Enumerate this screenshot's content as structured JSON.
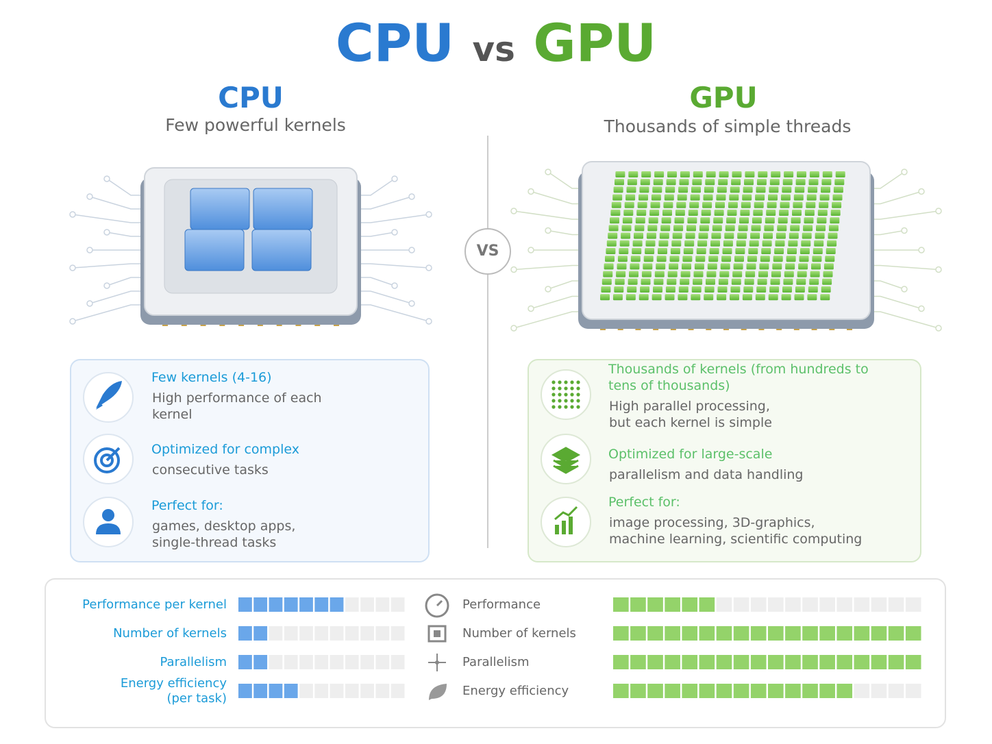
{
  "title": {
    "left": "CPU",
    "mid": "vs",
    "right": "GPU"
  },
  "vs_badge": "VS",
  "cpu": {
    "heading": "CPU",
    "subtitle": "Few powerful kernels",
    "features": [
      {
        "title": [
          "Few kernels (4-16)"
        ],
        "text": [
          "High performance of each",
          "kernel"
        ]
      },
      {
        "title": [
          "Optimized for complex"
        ],
        "text": [
          "consecutive tasks"
        ]
      },
      {
        "title": [
          "Perfect for:"
        ],
        "text": [
          "games, desktop apps,",
          "single-thread tasks"
        ]
      }
    ]
  },
  "gpu": {
    "heading": "GPU",
    "subtitle": "Thousands of simple threads",
    "features": [
      {
        "title": [
          "Thousands of kernels (from hundreds to",
          "tens of thousands)"
        ],
        "text": [
          "High parallel processing,",
          "but each kernel is simple"
        ]
      },
      {
        "title": [
          "Optimized for large-scale"
        ],
        "text": [
          "parallelism and data handling"
        ]
      },
      {
        "title": [
          "Perfect for:"
        ],
        "text": [
          "image processing, 3D-graphics,",
          "machine learning, scientific computing"
        ]
      }
    ]
  },
  "ratings": {
    "cpu": {
      "segments": 11,
      "rows": [
        {
          "label": [
            "Performance per kernel"
          ],
          "filled": 7
        },
        {
          "label": [
            "Number of kernels"
          ],
          "filled": 2
        },
        {
          "label": [
            "Parallelism"
          ],
          "filled": 2
        },
        {
          "label": [
            "Energy efficiency",
            "(per task)"
          ],
          "filled": 4
        }
      ]
    },
    "gpu": {
      "segments": 18,
      "rows": [
        {
          "label": [
            "Performance"
          ],
          "filled": 6
        },
        {
          "label": [
            "Number of kernels"
          ],
          "filled": 18
        },
        {
          "label": [
            "Parallelism"
          ],
          "filled": 18
        },
        {
          "label": [
            "Energy efficiency"
          ],
          "filled": 14
        }
      ]
    }
  }
}
